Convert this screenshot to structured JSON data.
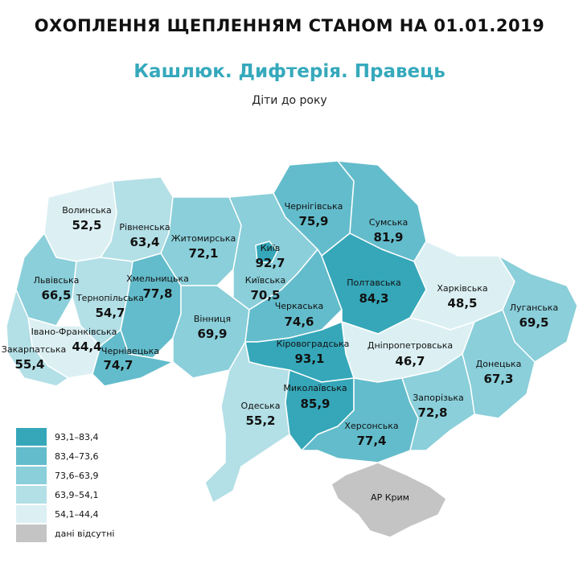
{
  "header": {
    "title": "ОХОПЛЕННЯ ЩЕПЛЕННЯМ СТАНОМ НА 01.01.2019",
    "subtitle": "Кашлюк. Дифтерія. Правець",
    "subsubtitle": "Діти до року"
  },
  "colors": {
    "c1": "#35a7b9",
    "c2": "#63bccb",
    "c3": "#8acfda",
    "c4": "#b3dfe6",
    "c5": "#dcf0f3",
    "na": "#c4c4c4"
  },
  "legend": [
    {
      "label": "93,1–83,4",
      "color": "#35a7b9"
    },
    {
      "label": "83,4–73,6",
      "color": "#63bccb"
    },
    {
      "label": "73,6–63,9",
      "color": "#8acfda"
    },
    {
      "label": "63,9–54,1",
      "color": "#b3dfe6"
    },
    {
      "label": "54,1–44,4",
      "color": "#dcf0f3"
    },
    {
      "label": "дані відсутні",
      "color": "#c4c4c4"
    }
  ],
  "regions": [
    {
      "name": "Волинська",
      "value": "52,5"
    },
    {
      "name": "Рівненська",
      "value": "63,4"
    },
    {
      "name": "Житомирська",
      "value": "72,1"
    },
    {
      "name": "Київ",
      "value": "92,7"
    },
    {
      "name": "Київська",
      "value": "70,5"
    },
    {
      "name": "Чернігівська",
      "value": "75,9"
    },
    {
      "name": "Сумська",
      "value": "81,9"
    },
    {
      "name": "Львівська",
      "value": "66,5"
    },
    {
      "name": "Тернопільська",
      "value": "54,7"
    },
    {
      "name": "Хмельницька",
      "value": "77,8"
    },
    {
      "name": "Полтавська",
      "value": "84,3"
    },
    {
      "name": "Харківська",
      "value": "48,5"
    },
    {
      "name": "Луганська",
      "value": "69,5"
    },
    {
      "name": "Вінниця",
      "value": "69,9"
    },
    {
      "name": "Черкаська",
      "value": "74,6"
    },
    {
      "name": "Івано-Франківська",
      "value": "44,4"
    },
    {
      "name": "Закарпатська",
      "value": "55,4"
    },
    {
      "name": "Чернівецька",
      "value": "74,7"
    },
    {
      "name": "Кіровоградська",
      "value": "93,1"
    },
    {
      "name": "Дніпропетровська",
      "value": "46,7"
    },
    {
      "name": "Донецька",
      "value": "67,3"
    },
    {
      "name": "Одеська",
      "value": "55,2"
    },
    {
      "name": "Миколаївська",
      "value": "85,9"
    },
    {
      "name": "Запорізька",
      "value": "72,8"
    },
    {
      "name": "Херсонська",
      "value": "77,4"
    },
    {
      "name": "АР Крим",
      "value": ""
    }
  ]
}
